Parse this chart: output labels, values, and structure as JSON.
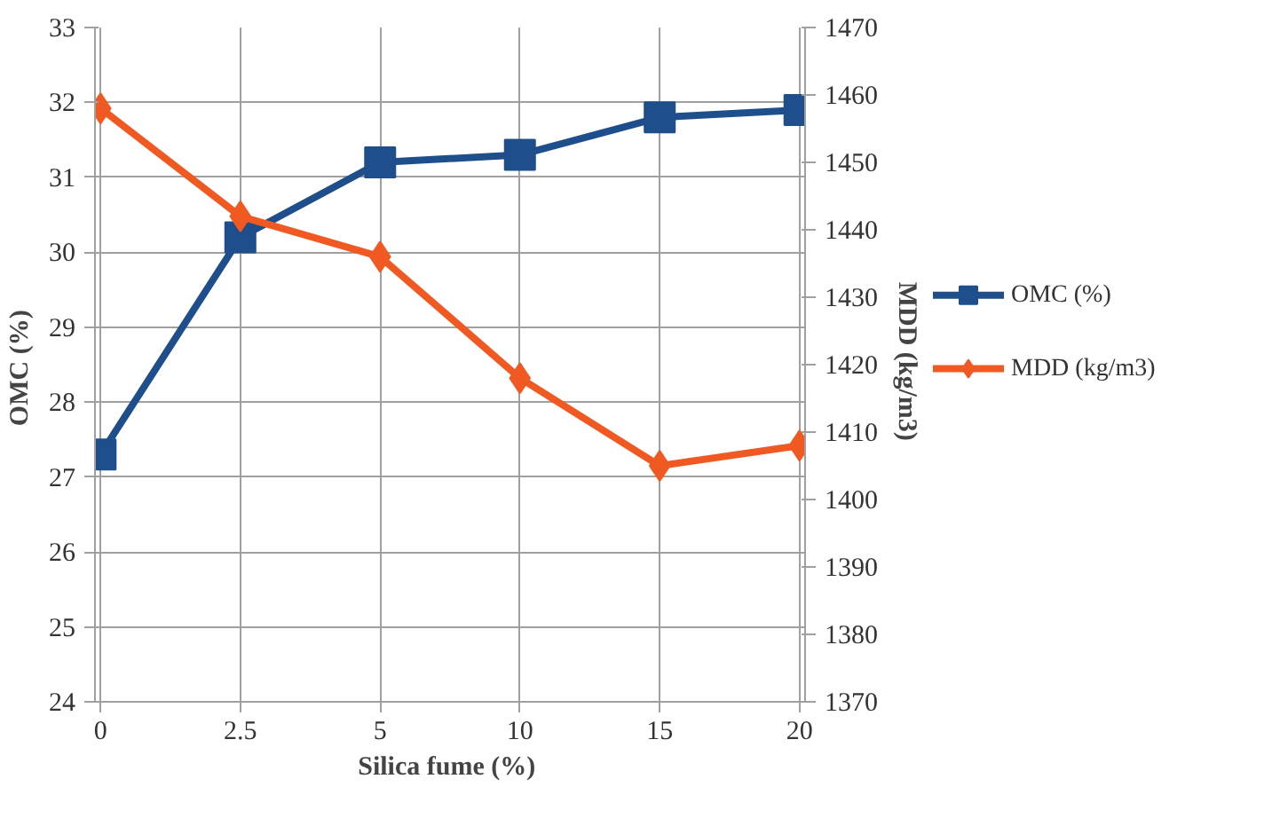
{
  "chart_data": {
    "type": "line",
    "xlabel": "Silica fume  (%)",
    "ylabel": "OMC  (%)",
    "y2label": "MDD  (kg/m3)",
    "categories": [
      "0",
      "2.5",
      "5",
      "10",
      "15",
      "20"
    ],
    "series": [
      {
        "name": "OMC (%)",
        "color": "#1f4e8c",
        "marker": "square",
        "values": [
          27.3,
          30.2,
          31.2,
          31.3,
          31.8,
          31.9
        ]
      },
      {
        "name": "MDD (kg/m3)",
        "color": "#f05a22",
        "marker": "diamond",
        "axis": "y2",
        "values": [
          1458,
          1442,
          1436,
          1418,
          1405,
          1408
        ]
      }
    ],
    "ylim": [
      24,
      33
    ],
    "yticks": [
      24,
      25,
      26,
      27,
      28,
      29,
      30,
      31,
      32,
      33
    ],
    "y2lim": [
      1370,
      1470
    ],
    "y2ticks": [
      1370,
      1380,
      1390,
      1400,
      1410,
      1420,
      1430,
      1440,
      1450,
      1460,
      1470
    ],
    "grid": true,
    "legend": "right",
    "line_style": "solid"
  }
}
